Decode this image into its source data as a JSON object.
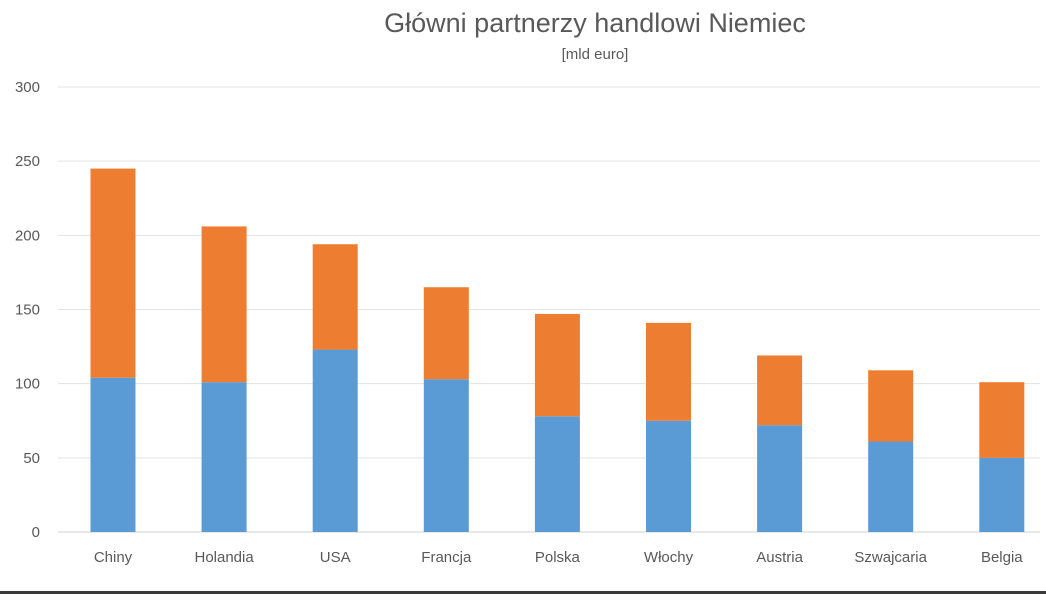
{
  "chart_data": {
    "type": "bar",
    "stacked": true,
    "title": "Główni partnerzy handlowi Niemiec",
    "subtitle": "[mld euro]",
    "xlabel": "",
    "ylabel": "",
    "ylim": [
      0,
      300
    ],
    "yticks": [
      0,
      50,
      100,
      150,
      200,
      250,
      300
    ],
    "grid": true,
    "legend": "none",
    "categories": [
      "Chiny",
      "Holandia",
      "USA",
      "Francja",
      "Polska",
      "Włochy",
      "Austria",
      "Szwajcaria",
      "Belgia"
    ],
    "series": [
      {
        "color": "#5b9bd5",
        "values": [
          104,
          101,
          123,
          103,
          78,
          75,
          72,
          61,
          50
        ]
      },
      {
        "color": "#ed7d31",
        "values": [
          141,
          105,
          71,
          62,
          69,
          66,
          47,
          48,
          51
        ]
      }
    ]
  }
}
